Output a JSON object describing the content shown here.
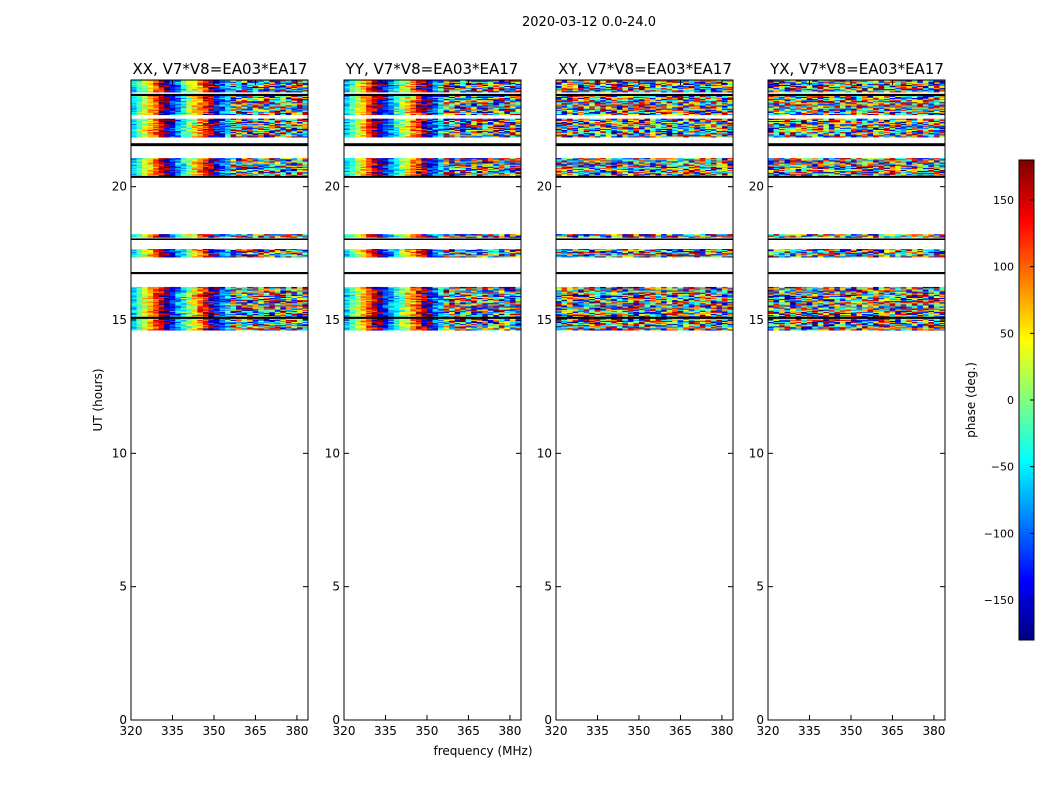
{
  "chart_data": {
    "type": "heatmap",
    "title": "2020-03-12 0.0-24.0",
    "xlabel": "frequency (MHz)",
    "ylabel": "UT (hours)",
    "xlim": [
      320,
      384
    ],
    "ylim": [
      0,
      24
    ],
    "xticks": [
      320,
      335,
      350,
      365,
      380
    ],
    "yticks": [
      0,
      5,
      10,
      15,
      20
    ],
    "panels": [
      {
        "title": "XX, V7*V8=EA03*EA17",
        "mode": "fringe",
        "seed": 11
      },
      {
        "title": "YY, V7*V8=EA03*EA17",
        "mode": "fringe",
        "seed": 23
      },
      {
        "title": "XY, V7*V8=EA03*EA17",
        "mode": "noise",
        "seed": 37
      },
      {
        "title": "YX, V7*V8=EA03*EA17",
        "mode": "noise",
        "seed": 51
      }
    ],
    "fringe_model": {
      "period_mhz": 17,
      "phase_at_320_deg": -60,
      "noise_onset_mhz": 355
    },
    "time_bands": [
      {
        "start": 23.55,
        "end": 24.0,
        "kind": "data"
      },
      {
        "start": 23.4,
        "end": 23.48,
        "kind": "flag-line"
      },
      {
        "start": 22.7,
        "end": 23.4,
        "kind": "data"
      },
      {
        "start": 22.2,
        "end": 22.55,
        "kind": "data"
      },
      {
        "start": 21.86,
        "end": 22.2,
        "kind": "data"
      },
      {
        "start": 21.52,
        "end": 21.63,
        "kind": "flag-line"
      },
      {
        "start": 20.4,
        "end": 21.07,
        "kind": "data"
      },
      {
        "start": 20.33,
        "end": 20.4,
        "kind": "flag-line"
      },
      {
        "start": 18.1,
        "end": 18.22,
        "kind": "data"
      },
      {
        "start": 18.0,
        "end": 18.06,
        "kind": "flag-line"
      },
      {
        "start": 17.36,
        "end": 17.66,
        "kind": "data"
      },
      {
        "start": 16.72,
        "end": 16.8,
        "kind": "flag-line"
      },
      {
        "start": 15.12,
        "end": 16.24,
        "kind": "data"
      },
      {
        "start": 15.04,
        "end": 15.12,
        "kind": "flag-line"
      },
      {
        "start": 14.62,
        "end": 15.04,
        "kind": "data"
      }
    ],
    "channel_width_mhz": 2,
    "row_height_hours": 0.04,
    "colorbar": {
      "label": "phase (deg.)",
      "range": [
        -180,
        180
      ],
      "ticks": [
        -150,
        -100,
        -50,
        0,
        50,
        100,
        150
      ],
      "colormap": "jet"
    }
  }
}
